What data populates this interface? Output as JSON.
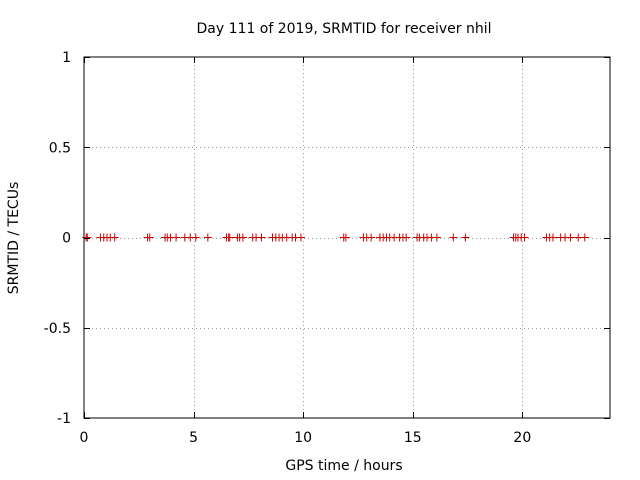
{
  "chart_data": {
    "type": "scatter",
    "title": "Day 111 of 2019, SRMTID for receiver nhil",
    "xlabel": "GPS time / hours",
    "ylabel": "SRMTID / TECUs",
    "xlim": [
      0,
      24
    ],
    "ylim": [
      -1,
      1
    ],
    "xticks": [
      0,
      5,
      10,
      15,
      20
    ],
    "xtick_labels": [
      "0",
      "5",
      "10",
      "15",
      "20"
    ],
    "yticks": [
      -1,
      -0.5,
      0,
      0.5,
      1
    ],
    "ytick_labels": [
      "-1",
      "-0.5",
      "0",
      "0.5",
      "1"
    ],
    "grid": true,
    "marker": "+",
    "marker_color": "#cc0000",
    "series": [
      {
        "name": "SRMTID",
        "x": [
          0.1,
          0.15,
          0.75,
          0.9,
          1.05,
          1.2,
          1.4,
          2.9,
          3.0,
          3.7,
          3.8,
          3.95,
          4.2,
          4.6,
          4.85,
          5.1,
          5.65,
          6.5,
          6.6,
          6.65,
          7.0,
          7.1,
          7.25,
          7.7,
          7.85,
          8.1,
          8.6,
          8.75,
          8.9,
          9.05,
          9.25,
          9.5,
          9.65,
          9.9,
          11.85,
          11.95,
          12.75,
          12.9,
          13.1,
          13.5,
          13.65,
          13.8,
          13.95,
          14.15,
          14.4,
          14.55,
          14.7,
          15.2,
          15.3,
          15.5,
          15.65,
          15.85,
          16.1,
          16.85,
          17.4,
          19.6,
          19.7,
          19.8,
          19.95,
          20.1,
          21.1,
          21.25,
          21.4,
          21.75,
          21.95,
          22.2,
          22.55,
          22.85
        ],
        "y": [
          0,
          0,
          0,
          0,
          0,
          0,
          0,
          0,
          0,
          0,
          0,
          0,
          0,
          0,
          0,
          0,
          0,
          0,
          0,
          0,
          0,
          0,
          0,
          0,
          0,
          0,
          0,
          0,
          0,
          0,
          0,
          0,
          0,
          0,
          0,
          0,
          0,
          0,
          0,
          0,
          0,
          0,
          0,
          0,
          0,
          0,
          0,
          0,
          0,
          0,
          0,
          0,
          0,
          0,
          0,
          0,
          0,
          0,
          0,
          0,
          0,
          0,
          0,
          0,
          0,
          0,
          0,
          0
        ]
      }
    ]
  }
}
